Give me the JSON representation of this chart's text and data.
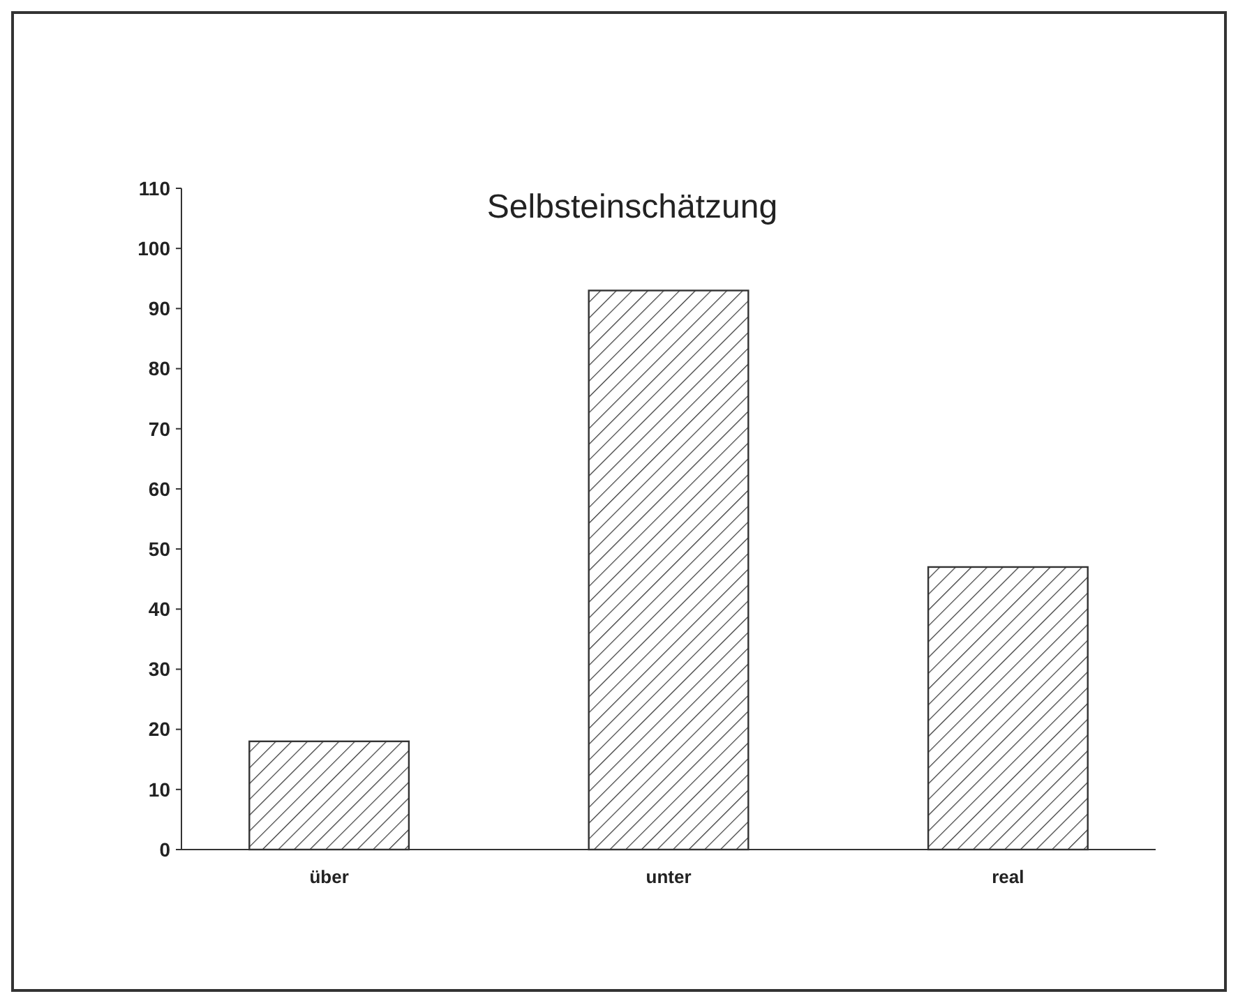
{
  "chart_data": {
    "type": "bar",
    "title": "Selbsteinschätzung",
    "categories": [
      "über",
      "unter",
      "real"
    ],
    "values": [
      18,
      93,
      47
    ],
    "color": "#333333",
    "ylim": [
      0,
      110
    ],
    "yticks": [
      0,
      10,
      20,
      30,
      40,
      50,
      60,
      70,
      80,
      90,
      100,
      110
    ],
    "grid": false
  }
}
